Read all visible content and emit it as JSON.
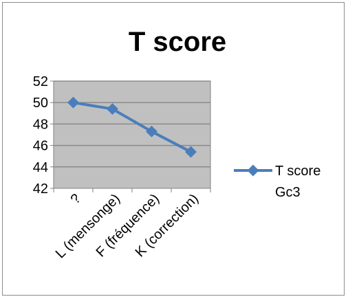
{
  "chart_data": {
    "type": "line",
    "title": "T score",
    "categories": [
      "?",
      "L (mensonge)",
      "F (fréquence)",
      "K (correction)"
    ],
    "series": [
      {
        "name": "T score Gc3",
        "values": [
          50.0,
          49.4,
          47.3,
          45.4
        ]
      }
    ],
    "ylim": [
      42,
      52
    ],
    "yticks": [
      42,
      44,
      46,
      48,
      50,
      52
    ],
    "grid": true,
    "legend_position": "right",
    "legend": {
      "line1": "T score",
      "line2": "Gc3"
    },
    "colors": {
      "series": "#4a7ebb",
      "plot_bg": "#c0c0c0",
      "grid": "#8a8a8a"
    }
  }
}
